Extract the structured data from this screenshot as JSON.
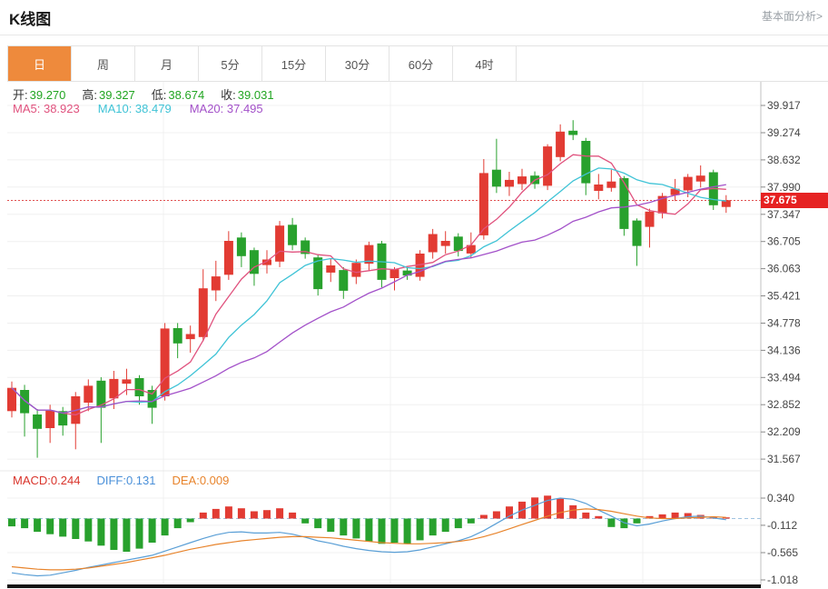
{
  "header": {
    "title": "K线图",
    "link": "基本面分析>"
  },
  "tabs": {
    "items": [
      {
        "label": "日",
        "active": true
      },
      {
        "label": "周"
      },
      {
        "label": "月"
      },
      {
        "label": "5分"
      },
      {
        "label": "15分"
      },
      {
        "label": "30分"
      },
      {
        "label": "60分"
      },
      {
        "label": "4时"
      }
    ]
  },
  "ohlc": {
    "open_label": "开:",
    "open": "39.270",
    "high_label": "高:",
    "high": "39.327",
    "low_label": "低:",
    "low": "38.674",
    "close_label": "收:",
    "close": "39.031"
  },
  "ma": {
    "ma5_label": "MA5: ",
    "ma5": "38.923",
    "ma10_label": "MA10: ",
    "ma10": "38.479",
    "ma20_label": "MA20: ",
    "ma20": "37.495"
  },
  "macd_info": {
    "macd_label": "MACD:",
    "macd": "0.244",
    "diff_label": "DIFF:",
    "diff": "0.131",
    "dea_label": "DEA:",
    "dea": "0.009"
  },
  "price_tag": {
    "value": "37.675"
  },
  "colors": {
    "up": "#e23b33",
    "down": "#28a12d",
    "ma5": "#e0527e",
    "ma10": "#3fc3d6",
    "ma20": "#a351c9",
    "diff_line": "#5a9fd6",
    "dea_line": "#e8842c",
    "tab_active": "#ee8a3c",
    "price_tag_bg": "#e62222",
    "dotted_line": "#e05050",
    "zero_line": "#9fc3e0",
    "grid": "#f0f0f0",
    "axis": "#c0c0c0",
    "tick_text": "#444444"
  },
  "chart_data": {
    "type": "candlestick",
    "title": "K线图 daily candlestick with MA5/MA10/MA20 and MACD",
    "price_axis": {
      "ticks": [
        39.917,
        39.274,
        38.632,
        37.99,
        37.347,
        36.705,
        36.063,
        35.421,
        34.778,
        34.136,
        33.494,
        32.852,
        32.209,
        31.567
      ],
      "current_price": 37.675
    },
    "macd_axis": {
      "ticks": [
        0.34,
        -0.112,
        -0.565,
        -1.018
      ]
    },
    "v_gridlines": [
      180,
      430,
      708
    ],
    "ma_periods": [
      5,
      10,
      20
    ],
    "candles": [
      [
        32.7,
        33.4,
        32.55,
        33.25
      ],
      [
        33.2,
        33.32,
        32.1,
        32.65
      ],
      [
        32.62,
        32.75,
        31.6,
        32.28
      ],
      [
        32.3,
        32.85,
        31.95,
        32.72
      ],
      [
        32.7,
        32.8,
        32.12,
        32.36
      ],
      [
        32.4,
        33.15,
        31.8,
        33.05
      ],
      [
        32.9,
        33.45,
        32.7,
        33.3
      ],
      [
        33.42,
        33.5,
        31.95,
        32.78
      ],
      [
        33.0,
        33.65,
        32.75,
        33.46
      ],
      [
        33.35,
        33.7,
        33.08,
        33.45
      ],
      [
        33.48,
        33.55,
        32.85,
        33.05
      ],
      [
        33.2,
        33.3,
        32.4,
        32.78
      ],
      [
        33.05,
        34.78,
        32.95,
        34.65
      ],
      [
        34.66,
        34.78,
        33.95,
        34.3
      ],
      [
        34.4,
        34.72,
        34.08,
        34.52
      ],
      [
        34.45,
        36.05,
        34.35,
        35.6
      ],
      [
        35.55,
        36.25,
        35.3,
        35.88
      ],
      [
        35.92,
        36.95,
        35.8,
        36.72
      ],
      [
        36.8,
        36.92,
        36.1,
        36.36
      ],
      [
        36.5,
        36.56,
        35.66,
        35.94
      ],
      [
        36.15,
        36.5,
        35.95,
        36.28
      ],
      [
        36.23,
        37.19,
        36.1,
        37.08
      ],
      [
        37.1,
        37.26,
        36.5,
        36.62
      ],
      [
        36.73,
        36.8,
        36.3,
        36.41
      ],
      [
        36.33,
        36.4,
        35.43,
        35.58
      ],
      [
        35.97,
        36.3,
        35.75,
        36.14
      ],
      [
        36.03,
        36.1,
        35.35,
        35.54
      ],
      [
        35.87,
        36.28,
        35.7,
        36.2
      ],
      [
        36.18,
        36.7,
        36.0,
        36.62
      ],
      [
        36.66,
        36.72,
        35.62,
        35.8
      ],
      [
        35.84,
        36.1,
        35.55,
        36.05
      ],
      [
        36.02,
        36.12,
        35.8,
        35.9
      ],
      [
        35.87,
        36.5,
        35.78,
        36.42
      ],
      [
        36.45,
        37.0,
        36.3,
        36.88
      ],
      [
        36.6,
        36.95,
        36.42,
        36.72
      ],
      [
        36.82,
        36.9,
        36.35,
        36.48
      ],
      [
        36.42,
        36.92,
        36.32,
        36.62
      ],
      [
        36.85,
        38.65,
        36.75,
        38.32
      ],
      [
        38.4,
        39.13,
        37.85,
        38.0
      ],
      [
        38.0,
        38.35,
        37.78,
        38.16
      ],
      [
        38.06,
        38.42,
        37.92,
        38.24
      ],
      [
        38.26,
        38.36,
        37.95,
        38.06
      ],
      [
        38.02,
        39.0,
        37.92,
        38.95
      ],
      [
        38.7,
        39.47,
        38.6,
        39.3
      ],
      [
        39.32,
        39.57,
        39.1,
        39.22
      ],
      [
        39.08,
        39.15,
        37.8,
        38.08
      ],
      [
        37.9,
        38.3,
        37.7,
        38.05
      ],
      [
        37.97,
        38.4,
        37.88,
        38.12
      ],
      [
        38.2,
        38.25,
        36.84,
        37.0
      ],
      [
        37.2,
        37.25,
        36.13,
        36.6
      ],
      [
        37.05,
        37.48,
        36.56,
        37.41
      ],
      [
        37.37,
        37.85,
        37.25,
        37.78
      ],
      [
        37.8,
        38.18,
        37.66,
        37.95
      ],
      [
        37.91,
        38.3,
        37.75,
        38.23
      ],
      [
        38.12,
        38.5,
        37.98,
        38.26
      ],
      [
        38.34,
        38.4,
        37.45,
        37.56
      ],
      [
        37.52,
        37.8,
        37.38,
        37.68
      ]
    ],
    "macd": {
      "hist": [
        -0.13,
        -0.16,
        -0.22,
        -0.26,
        -0.3,
        -0.34,
        -0.38,
        -0.45,
        -0.52,
        -0.55,
        -0.5,
        -0.4,
        -0.28,
        -0.16,
        -0.06,
        0.1,
        0.16,
        0.2,
        0.17,
        0.12,
        0.14,
        0.17,
        0.1,
        -0.08,
        -0.16,
        -0.22,
        -0.28,
        -0.33,
        -0.38,
        -0.42,
        -0.4,
        -0.42,
        -0.36,
        -0.28,
        -0.22,
        -0.16,
        -0.08,
        0.06,
        0.12,
        0.2,
        0.28,
        0.35,
        0.38,
        0.33,
        0.22,
        0.1,
        0.04,
        -0.14,
        -0.16,
        -0.08,
        0.04,
        0.07,
        0.1,
        0.09,
        0.06,
        0.03,
        0.02
      ],
      "diff": [
        -0.9,
        -0.93,
        -0.95,
        -0.94,
        -0.9,
        -0.86,
        -0.81,
        -0.77,
        -0.73,
        -0.69,
        -0.65,
        -0.61,
        -0.54,
        -0.47,
        -0.4,
        -0.33,
        -0.27,
        -0.23,
        -0.22,
        -0.24,
        -0.24,
        -0.23,
        -0.26,
        -0.31,
        -0.37,
        -0.41,
        -0.46,
        -0.5,
        -0.53,
        -0.55,
        -0.56,
        -0.55,
        -0.52,
        -0.47,
        -0.42,
        -0.37,
        -0.3,
        -0.2,
        -0.08,
        0.04,
        0.14,
        0.22,
        0.3,
        0.34,
        0.32,
        0.25,
        0.14,
        0.04,
        -0.07,
        -0.12,
        -0.09,
        -0.04,
        0.0,
        0.03,
        0.04,
        0.01,
        -0.02
      ],
      "dea": [
        -0.8,
        -0.82,
        -0.84,
        -0.85,
        -0.85,
        -0.84,
        -0.82,
        -0.79,
        -0.76,
        -0.73,
        -0.69,
        -0.65,
        -0.61,
        -0.56,
        -0.51,
        -0.47,
        -0.43,
        -0.4,
        -0.37,
        -0.35,
        -0.33,
        -0.31,
        -0.3,
        -0.3,
        -0.31,
        -0.32,
        -0.34,
        -0.36,
        -0.38,
        -0.4,
        -0.41,
        -0.42,
        -0.42,
        -0.41,
        -0.4,
        -0.38,
        -0.35,
        -0.3,
        -0.24,
        -0.17,
        -0.1,
        -0.03,
        0.04,
        0.1,
        0.14,
        0.16,
        0.15,
        0.12,
        0.08,
        0.04,
        0.01,
        0.0,
        0.0,
        0.01,
        0.02,
        0.03,
        0.02
      ]
    }
  }
}
